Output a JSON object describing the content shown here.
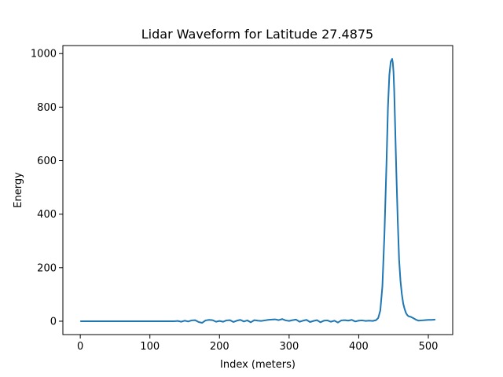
{
  "chart_data": {
    "type": "line",
    "title": "Lidar Waveform for Latitude 27.4875",
    "xlabel": "Index (meters)",
    "ylabel": "Energy",
    "xlim": [
      -25,
      535
    ],
    "ylim": [
      -50,
      1030
    ],
    "xticks": [
      0,
      100,
      200,
      300,
      400,
      500
    ],
    "yticks": [
      0,
      200,
      400,
      600,
      800,
      1000
    ],
    "grid": false,
    "line_color": "#1f77b4",
    "series": [
      {
        "x": [
          0,
          20,
          40,
          60,
          80,
          100,
          120,
          135,
          140,
          145,
          150,
          155,
          160,
          165,
          170,
          175,
          180,
          185,
          190,
          195,
          200,
          205,
          210,
          215,
          220,
          225,
          230,
          235,
          240,
          245,
          250,
          255,
          260,
          265,
          270,
          275,
          280,
          285,
          290,
          295,
          300,
          305,
          310,
          315,
          320,
          325,
          330,
          335,
          340,
          345,
          350,
          355,
          360,
          365,
          370,
          375,
          380,
          385,
          390,
          395,
          400,
          405,
          410,
          415,
          420,
          425,
          428,
          431,
          434,
          437,
          440,
          442,
          444,
          446,
          448,
          449,
          450,
          451,
          452,
          454,
          456,
          458,
          460,
          462,
          464,
          466,
          468,
          470,
          472,
          475,
          478,
          482,
          486,
          490,
          495,
          500,
          505,
          510
        ],
        "values": [
          0,
          0,
          0,
          0,
          0,
          0,
          0,
          0,
          1,
          -2,
          2,
          -1,
          3,
          4,
          -3,
          -6,
          3,
          5,
          4,
          -2,
          1,
          -2,
          3,
          4,
          -3,
          2,
          5,
          -1,
          3,
          -4,
          4,
          2,
          1,
          3,
          5,
          6,
          7,
          4,
          8,
          3,
          1,
          4,
          6,
          -2,
          2,
          5,
          -3,
          1,
          4,
          -4,
          2,
          3,
          -2,
          2,
          -5,
          3,
          4,
          2,
          5,
          -1,
          2,
          3,
          1,
          2,
          1,
          4,
          12,
          40,
          130,
          330,
          600,
          800,
          920,
          970,
          980,
          965,
          930,
          860,
          760,
          560,
          380,
          230,
          150,
          100,
          65,
          45,
          30,
          22,
          18,
          16,
          12,
          6,
          2,
          3,
          4,
          5,
          5,
          6
        ]
      }
    ]
  }
}
